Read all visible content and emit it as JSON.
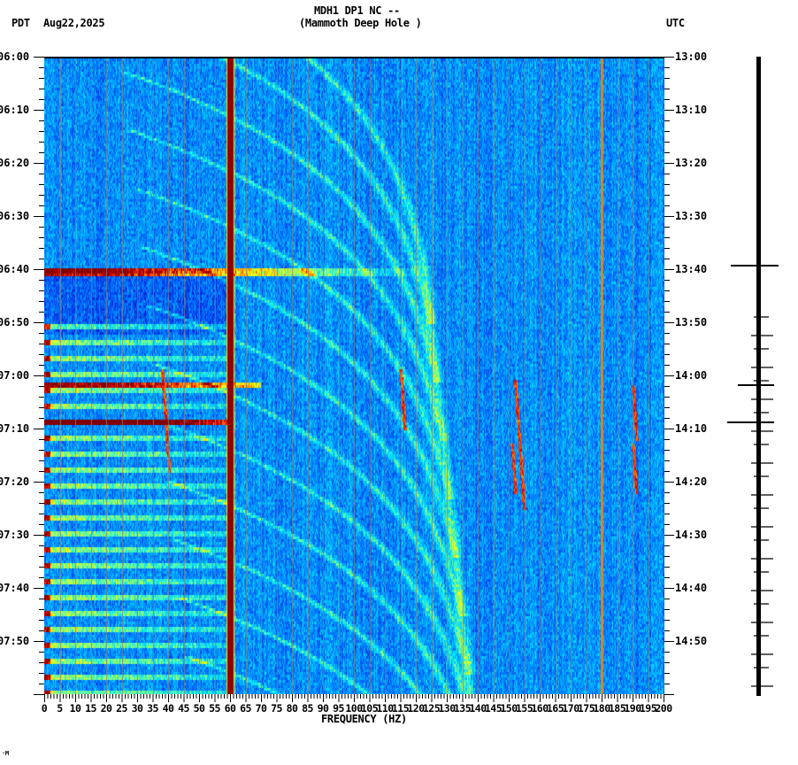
{
  "header": {
    "left_timezone": "PDT",
    "date": "Aug22,2025",
    "station_line": "MDH1 DP1 NC --",
    "station_name": "(Mammoth Deep Hole )",
    "right_timezone": "UTC"
  },
  "footer_mark": "·M",
  "colors": {
    "background": "#ffffff",
    "axis": "#000000",
    "gridline": "#808080",
    "spectrogram_low": "#0a5ef0",
    "spectrogram_mid": "#00e0ff",
    "spectrogram_high": "#ffff00",
    "spectrogram_peak": "#8b0000"
  },
  "chart_data": {
    "type": "heatmap",
    "title": "MDH1 DP1 NC -- (Mammoth Deep Hole )",
    "subtitle": "Aug22,2025",
    "xlabel": "FREQUENCY (HZ)",
    "ylabel_left": "PDT",
    "ylabel_right": "UTC",
    "xlim": [
      0,
      200
    ],
    "x_ticks": [
      "0",
      "5",
      "10",
      "15",
      "20",
      "25",
      "30",
      "35",
      "40",
      "45",
      "50",
      "55",
      "60",
      "65",
      "70",
      "75",
      "80",
      "85",
      "90",
      "95",
      "100",
      "105",
      "110",
      "115",
      "120",
      "125",
      "130",
      "135",
      "140",
      "145",
      "150",
      "155",
      "160",
      "165",
      "170",
      "175",
      "180",
      "185",
      "190",
      "195",
      "200"
    ],
    "x_minor_tick_step_hz": 1,
    "y_ticks_left": [
      "06:00",
      "06:10",
      "06:20",
      "06:30",
      "06:40",
      "06:50",
      "07:00",
      "07:10",
      "07:20",
      "07:30",
      "07:40",
      "07:50"
    ],
    "y_ticks_right": [
      "13:00",
      "13:10",
      "13:20",
      "13:30",
      "13:40",
      "13:50",
      "14:00",
      "14:10",
      "14:20",
      "14:30",
      "14:40",
      "14:50"
    ],
    "y_minor_tick_step_min": 2,
    "time_span_minutes": 120,
    "grid": {
      "vertical_every_hz": 5,
      "color": "gray"
    },
    "features": [
      {
        "type": "persistent_line",
        "frequency_hz": 60,
        "intensity": "max",
        "note": "power-line hum, full duration"
      },
      {
        "type": "weak_line",
        "frequency_hz": 180,
        "intensity": "medium"
      },
      {
        "type": "broadband_burst",
        "time_pdt": "06:40",
        "freq_range_hz": [
          0,
          200
        ],
        "intensity": "max below 25 Hz, decaying with frequency"
      },
      {
        "type": "broadband_burst",
        "time_pdt": "07:01",
        "freq_range_hz": [
          0,
          60
        ],
        "intensity": "max below 20 Hz"
      },
      {
        "type": "broadband_burst",
        "time_pdt": "07:08",
        "freq_range_hz": [
          0,
          60
        ],
        "intensity": "max below 15 Hz"
      },
      {
        "type": "repeating_bands",
        "time_range_pdt": [
          "06:50",
          "08:00"
        ],
        "period_min": 3,
        "freq_range_hz": [
          0,
          60
        ]
      },
      {
        "type": "curved_tracks",
        "time_range_pdt": [
          "06:00",
          "08:00"
        ],
        "description": "upward-sweeping doppler arcs from ~20 Hz to ~130 Hz"
      },
      {
        "type": "short_transients",
        "freq_hz": [
          38,
          115,
          152,
          190
        ],
        "time_range_pdt": [
          "06:58",
          "07:22"
        ]
      }
    ],
    "seismogram": {
      "position": "right",
      "large_spikes_pdt": [
        "06:40",
        "07:01",
        "07:09"
      ],
      "small_spikes_from_pdt": "06:50"
    }
  }
}
